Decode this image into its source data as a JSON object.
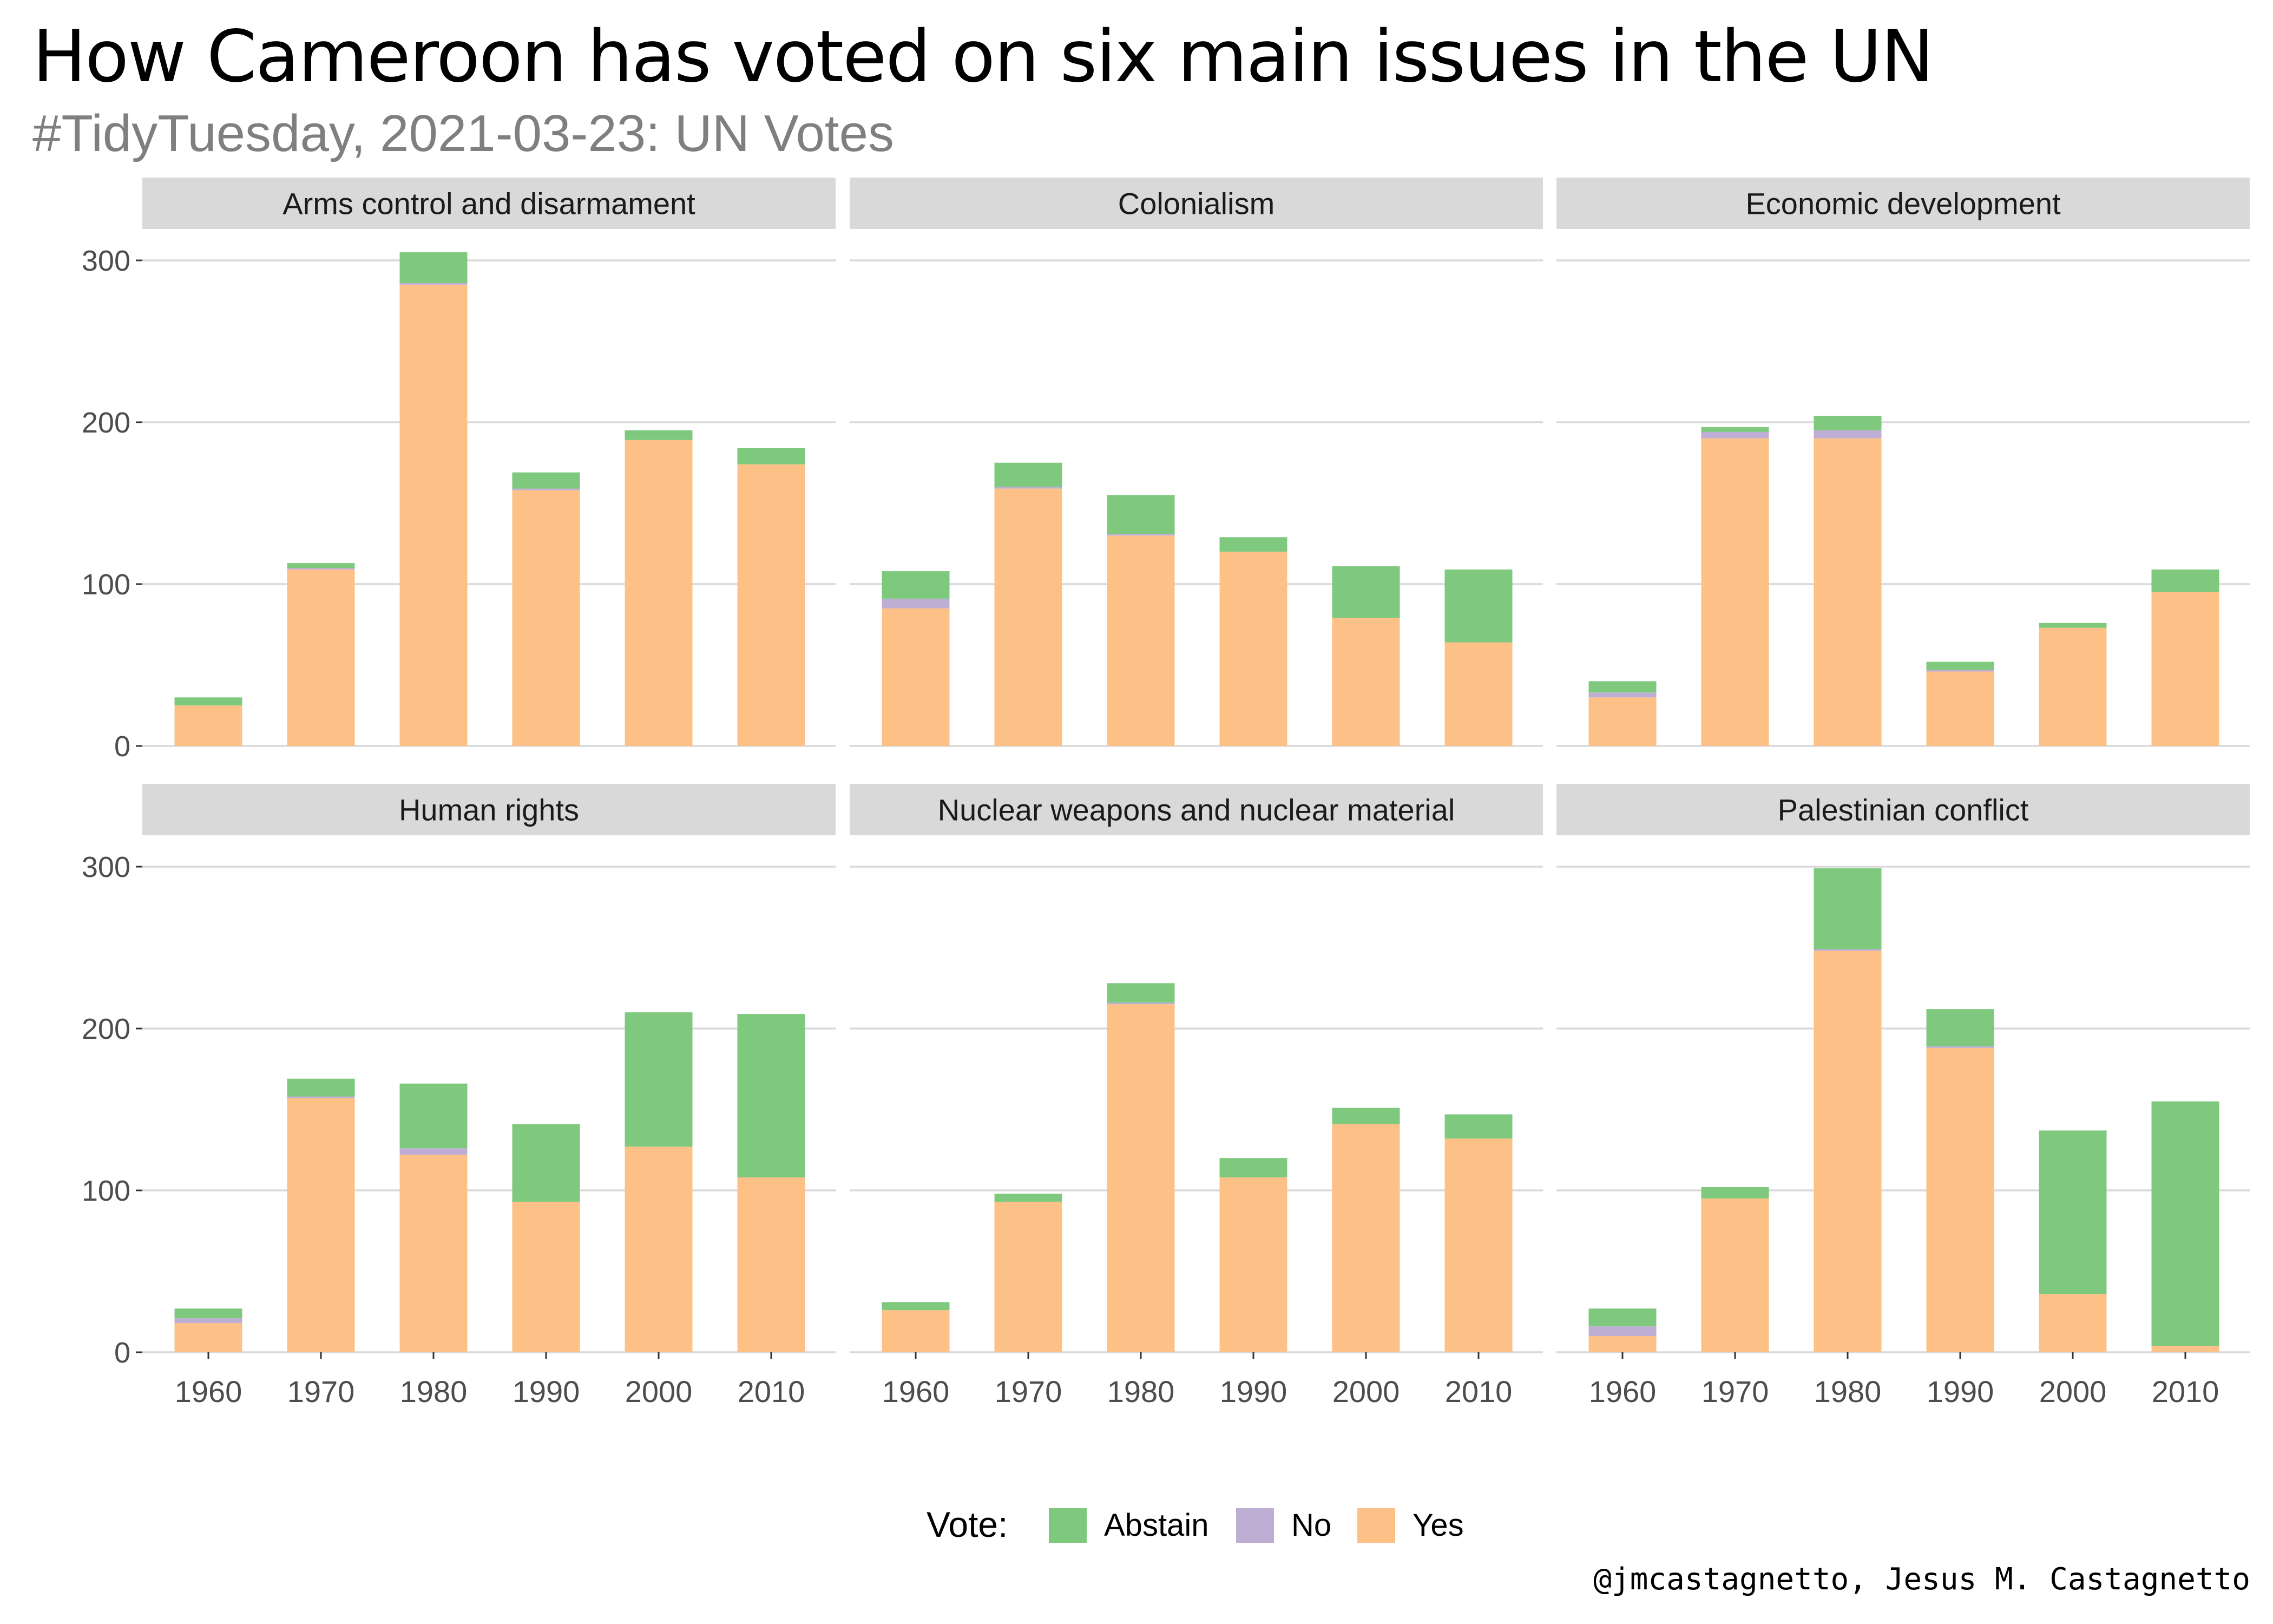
{
  "title": "How Cameroon has voted on six main issues in the UN",
  "subtitle": "#TidyTuesday, 2021-03-23: UN Votes",
  "caption": "@jmcastagnetto, Jesus M. Castagnetto",
  "legend": {
    "title": "Vote:",
    "items": [
      {
        "label": "Abstain",
        "color": "#7fc97f"
      },
      {
        "label": "No",
        "color": "#beaed4"
      },
      {
        "label": "Yes",
        "color": "#fdc086"
      }
    ]
  },
  "chart_data": {
    "type": "bar",
    "stacked": true,
    "facets": [
      "Arms control and disarmament",
      "Colonialism",
      "Economic development",
      "Human rights",
      "Nuclear weapons and nuclear material",
      "Palestinian conflict"
    ],
    "categories": [
      "1960",
      "1970",
      "1980",
      "1990",
      "2000",
      "2010"
    ],
    "y_ticks": [
      "0",
      "100",
      "200",
      "300"
    ],
    "ylim": [
      0,
      310
    ],
    "grid": true,
    "legend_position": "bottom",
    "series_order": [
      "Yes",
      "No",
      "Abstain"
    ],
    "colors": {
      "Yes": "#fdc086",
      "No": "#beaed4",
      "Abstain": "#7fc97f"
    },
    "panels": [
      {
        "name": "Arms control and disarmament",
        "Yes": [
          25,
          109,
          285,
          158,
          189,
          174
        ],
        "No": [
          0,
          1,
          1,
          1,
          0,
          0
        ],
        "Abstain": [
          5,
          3,
          19,
          10,
          6,
          10
        ]
      },
      {
        "name": "Colonialism",
        "Yes": [
          85,
          159,
          130,
          120,
          79,
          64
        ],
        "No": [
          6,
          1,
          1,
          0,
          0,
          0
        ],
        "Abstain": [
          17,
          15,
          24,
          9,
          32,
          45
        ]
      },
      {
        "name": "Economic development",
        "Yes": [
          30,
          190,
          190,
          46,
          73,
          95
        ],
        "No": [
          3,
          4,
          5,
          1,
          0,
          0
        ],
        "Abstain": [
          7,
          3,
          9,
          5,
          3,
          14
        ]
      },
      {
        "name": "Human rights",
        "Yes": [
          18,
          157,
          122,
          93,
          127,
          108
        ],
        "No": [
          3,
          1,
          4,
          0,
          0,
          0
        ],
        "Abstain": [
          6,
          11,
          40,
          48,
          83,
          101
        ]
      },
      {
        "name": "Nuclear weapons and nuclear material",
        "Yes": [
          26,
          93,
          215,
          108,
          141,
          132
        ],
        "No": [
          0,
          0,
          1,
          0,
          0,
          0
        ],
        "Abstain": [
          5,
          5,
          12,
          12,
          10,
          15
        ]
      },
      {
        "name": "Palestinian conflict",
        "Yes": [
          10,
          95,
          248,
          188,
          36,
          4
        ],
        "No": [
          6,
          0,
          1,
          1,
          0,
          0
        ],
        "Abstain": [
          11,
          7,
          50,
          23,
          101,
          151
        ]
      }
    ]
  }
}
